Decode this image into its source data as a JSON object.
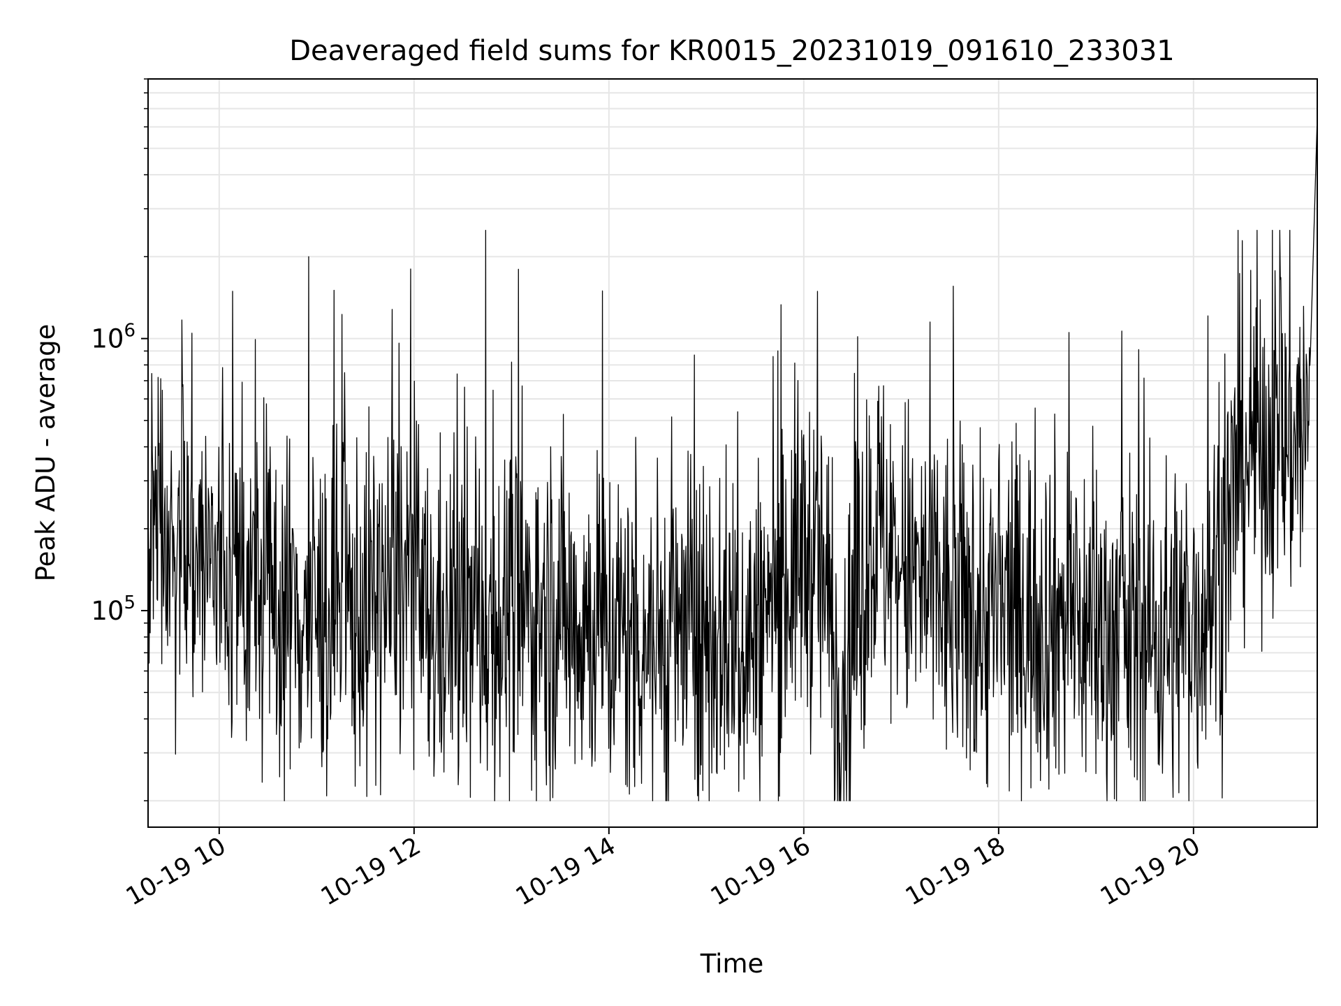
{
  "chart_data": {
    "type": "line",
    "title": "Deaveraged field sums for KR0015_20231019_091610_233031",
    "xlabel": "Time",
    "ylabel": "Peak ADU - average",
    "x_range": [
      "10-19 09:16",
      "10-19 21:16"
    ],
    "xlim_hours": [
      9.27,
      21.27
    ],
    "ylim": [
      16000,
      9000000
    ],
    "y_scale": "log",
    "grid": true,
    "line_color": "#000000",
    "grid_color": "#e6e6e6",
    "x_ticks": [
      "10-19 10",
      "10-19 12",
      "10-19 14",
      "10-19 16",
      "10-19 18",
      "10-19 20"
    ],
    "x_tick_hours": [
      10,
      12,
      14,
      16,
      18,
      20
    ],
    "y_ticks": [
      {
        "value": 100000,
        "base": "10",
        "exp": "5"
      },
      {
        "value": 1000000,
        "base": "10",
        "exp": "6"
      }
    ],
    "series": [
      {
        "x_hours": [
          9.27,
          9.5,
          10.0,
          10.5,
          11.0,
          11.5,
          12.0,
          12.13,
          12.5,
          13.0,
          13.5,
          14.0,
          14.5,
          15.0,
          15.5,
          16.0,
          16.2,
          16.35,
          16.5,
          16.7,
          17.0,
          17.5,
          18.0,
          18.5,
          19.0,
          19.5,
          20.0,
          20.3,
          20.5,
          20.8,
          21.0,
          21.2,
          21.27
        ],
        "values": [
          200000,
          190000,
          140000,
          110000,
          95000,
          100000,
          140000,
          82000,
          90000,
          95000,
          100000,
          85000,
          78000,
          85000,
          80000,
          170000,
          130000,
          55000,
          75000,
          210000,
          145000,
          100000,
          95000,
          100000,
          85000,
          78000,
          90000,
          150000,
          380000,
          450000,
          420000,
          480000,
          6500000
        ],
        "noise_range": [
          20000,
          2500000
        ]
      }
    ]
  }
}
